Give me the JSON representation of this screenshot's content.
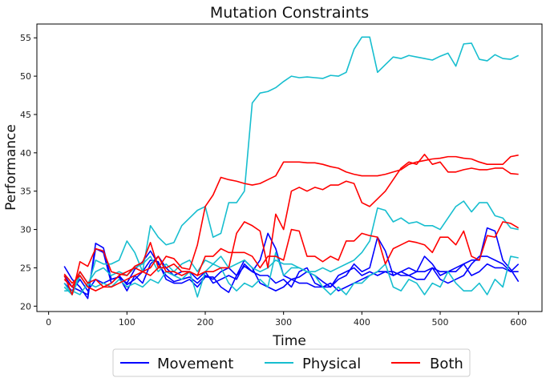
{
  "chart_data": {
    "type": "line",
    "title": "Mutation Constraints",
    "xlabel": "Time",
    "ylabel": "Performance",
    "xlim": [
      -15,
      630
    ],
    "ylim": [
      19.3,
      56.8
    ],
    "xticks": [
      0,
      100,
      200,
      300,
      400,
      500,
      600
    ],
    "yticks": [
      20,
      25,
      30,
      35,
      40,
      45,
      50,
      55
    ],
    "legend": {
      "placement": "bottom-center-outside",
      "columns": 3
    },
    "x": [
      20,
      30,
      40,
      50,
      60,
      70,
      80,
      90,
      100,
      110,
      120,
      130,
      140,
      150,
      160,
      170,
      180,
      190,
      200,
      210,
      220,
      230,
      240,
      250,
      260,
      270,
      280,
      290,
      300,
      310,
      320,
      330,
      340,
      350,
      360,
      370,
      380,
      390,
      400,
      410,
      420,
      430,
      440,
      450,
      460,
      470,
      480,
      490,
      500,
      510,
      520,
      530,
      540,
      550,
      560,
      570,
      580,
      590,
      600
    ],
    "series": [
      {
        "name": "Movement",
        "color": "#0000ff",
        "values": [
          25.2,
          23.5,
          22.5,
          21.0,
          28.2,
          27.6,
          23.5,
          23.8,
          23.0,
          24.8,
          25.8,
          27.2,
          25.5,
          24.0,
          23.2,
          23.5,
          23.8,
          23.0,
          24.0,
          23.5,
          24.5,
          25.0,
          24.0,
          25.2,
          24.5,
          26.0,
          29.5,
          27.5,
          24.0,
          23.5,
          23.8,
          24.5,
          24.0,
          23.2,
          22.5,
          23.5,
          24.0,
          25.5,
          24.5,
          25.0,
          29.0,
          27.2,
          24.0,
          24.5,
          25.0,
          24.5,
          26.5,
          25.5,
          24.0,
          24.5,
          24.5,
          25.5,
          26.0,
          26.0,
          30.2,
          29.8,
          26.0,
          24.8,
          23.2
        ]
      },
      {
        "name": "Movement",
        "color": "#0000ff",
        "values": [
          24.0,
          22.5,
          22.0,
          21.5,
          27.5,
          27.0,
          23.0,
          24.0,
          22.8,
          23.5,
          24.5,
          26.0,
          25.8,
          23.5,
          23.0,
          23.0,
          23.5,
          22.5,
          23.8,
          23.8,
          22.5,
          21.8,
          24.0,
          26.0,
          25.0,
          23.0,
          22.5,
          22.0,
          22.5,
          23.5,
          23.0,
          23.0,
          22.5,
          22.5,
          23.0,
          22.0,
          22.5,
          23.0,
          23.5,
          24.0,
          24.5,
          24.5,
          24.5,
          24.0,
          24.0,
          23.5,
          23.5,
          25.0,
          23.5,
          23.0,
          23.5,
          24.0,
          25.5,
          26.5,
          26.5,
          26.0,
          25.5,
          24.5,
          25.5
        ]
      },
      {
        "name": "Movement",
        "color": "#0000ff",
        "values": [
          23.0,
          22.0,
          23.5,
          22.0,
          23.5,
          23.0,
          23.5,
          23.8,
          22.0,
          24.0,
          23.0,
          25.5,
          26.5,
          25.0,
          24.0,
          24.5,
          24.5,
          23.5,
          24.5,
          23.0,
          23.5,
          24.0,
          23.5,
          25.5,
          24.5,
          24.0,
          24.0,
          23.0,
          23.5,
          22.5,
          24.5,
          25.0,
          23.0,
          22.5,
          22.5,
          24.0,
          24.5,
          25.0,
          24.0,
          24.5,
          24.0,
          24.5,
          24.0,
          24.5,
          24.0,
          24.5,
          24.5,
          25.0,
          24.5,
          24.5,
          25.0,
          25.5,
          24.0,
          24.5,
          25.5,
          25.0,
          25.0,
          24.5,
          24.5
        ]
      },
      {
        "name": "Physical",
        "color": "#17becf",
        "values": [
          22.5,
          21.5,
          24.0,
          22.5,
          26.0,
          25.5,
          25.5,
          26.0,
          28.5,
          27.0,
          24.5,
          30.5,
          29.0,
          28.0,
          28.3,
          30.5,
          31.5,
          32.5,
          33.0,
          29.0,
          29.5,
          33.5,
          33.5,
          35.0,
          46.5,
          47.8,
          48.0,
          48.5,
          49.3,
          50.0,
          49.8,
          49.9,
          49.8,
          49.7,
          50.1,
          50.0,
          50.5,
          53.5,
          55.1,
          55.1,
          50.5,
          51.5,
          52.5,
          52.3,
          52.7,
          52.5,
          52.3,
          52.1,
          52.6,
          53.0,
          51.3,
          54.2,
          54.3,
          52.2,
          52.0,
          52.8,
          52.3,
          52.2,
          52.7
        ]
      },
      {
        "name": "Physical",
        "color": "#17becf",
        "values": [
          23.0,
          21.5,
          24.5,
          23.0,
          24.5,
          25.0,
          24.0,
          24.5,
          24.0,
          25.0,
          25.5,
          26.5,
          24.5,
          25.5,
          24.5,
          25.5,
          26.0,
          24.5,
          26.0,
          25.5,
          26.5,
          25.0,
          25.5,
          26.0,
          25.0,
          24.5,
          25.0,
          26.0,
          25.5,
          25.5,
          25.0,
          24.5,
          24.5,
          25.0,
          24.5,
          25.0,
          25.5,
          26.0,
          27.0,
          28.5,
          32.8,
          32.5,
          31.0,
          31.5,
          30.8,
          31.0,
          30.5,
          30.5,
          30.0,
          31.5,
          33.0,
          33.7,
          32.3,
          33.5,
          33.5,
          31.8,
          31.5,
          30.2,
          30.0
        ]
      },
      {
        "name": "Physical",
        "color": "#17becf",
        "values": [
          22.0,
          22.0,
          21.5,
          23.0,
          22.5,
          23.0,
          22.5,
          23.5,
          22.5,
          23.0,
          22.5,
          23.5,
          23.0,
          24.5,
          24.0,
          23.5,
          24.5,
          21.2,
          24.5,
          25.5,
          25.0,
          23.0,
          22.0,
          23.0,
          22.5,
          23.5,
          22.5,
          27.0,
          24.0,
          25.0,
          25.0,
          24.5,
          24.0,
          22.5,
          21.5,
          22.5,
          21.5,
          23.0,
          23.0,
          24.0,
          24.5,
          25.5,
          22.5,
          22.0,
          23.5,
          23.0,
          21.5,
          23.0,
          22.5,
          24.5,
          23.0,
          22.0,
          22.0,
          23.0,
          21.5,
          23.5,
          22.5,
          26.5,
          26.3
        ]
      },
      {
        "name": "Both",
        "color": "#ff0000",
        "values": [
          24.0,
          21.5,
          25.8,
          25.2,
          27.5,
          27.2,
          24.5,
          24.2,
          24.0,
          25.2,
          25.7,
          28.3,
          25.0,
          26.5,
          26.2,
          25.0,
          24.8,
          28.0,
          33.0,
          34.5,
          36.8,
          36.5,
          36.3,
          36.0,
          35.8,
          36.0,
          36.5,
          37.0,
          38.8,
          38.8,
          38.8,
          38.7,
          38.7,
          38.5,
          38.2,
          38.0,
          37.5,
          37.2,
          37.0,
          37.0,
          37.0,
          37.2,
          37.5,
          37.8,
          38.5,
          38.8,
          39.0,
          39.2,
          39.3,
          39.5,
          39.5,
          39.3,
          39.2,
          38.8,
          38.5,
          38.5,
          38.5,
          39.5,
          39.7
        ]
      },
      {
        "name": "Both",
        "color": "#ff0000",
        "values": [
          23.5,
          22.5,
          24.5,
          23.0,
          23.5,
          22.5,
          23.0,
          24.0,
          24.5,
          25.0,
          24.5,
          25.0,
          26.5,
          24.5,
          24.5,
          24.0,
          24.5,
          24.0,
          24.5,
          24.5,
          25.0,
          25.0,
          29.5,
          31.0,
          30.5,
          29.8,
          25.0,
          32.0,
          30.0,
          35.0,
          35.5,
          35.0,
          35.5,
          35.2,
          35.8,
          35.8,
          36.3,
          36.0,
          33.5,
          33.0,
          34.0,
          35.0,
          36.5,
          38.0,
          38.8,
          38.5,
          39.8,
          38.5,
          38.8,
          37.5,
          37.5,
          37.8,
          38.0,
          37.8,
          37.8,
          38.0,
          38.0,
          37.3,
          37.2
        ]
      },
      {
        "name": "Both",
        "color": "#ff0000",
        "values": [
          24.2,
          23.0,
          24.0,
          22.5,
          22.0,
          22.5,
          22.5,
          23.0,
          23.5,
          24.0,
          24.5,
          24.0,
          25.0,
          25.0,
          25.5,
          24.5,
          24.5,
          24.0,
          26.5,
          26.5,
          27.5,
          27.0,
          27.0,
          27.0,
          26.5,
          25.0,
          26.5,
          26.5,
          26.0,
          30.0,
          29.8,
          26.5,
          26.5,
          25.8,
          26.5,
          26.0,
          28.5,
          28.5,
          29.5,
          29.2,
          29.0,
          25.5,
          27.5,
          28.0,
          28.5,
          28.3,
          28.0,
          27.0,
          29.0,
          29.0,
          28.0,
          29.8,
          26.5,
          26.0,
          29.2,
          29.0,
          31.0,
          30.8,
          30.2
        ]
      }
    ]
  },
  "legend": {
    "items": [
      {
        "label": "Movement",
        "color": "#0000ff"
      },
      {
        "label": "Physical",
        "color": "#17becf"
      },
      {
        "label": "Both",
        "color": "#ff0000"
      }
    ]
  }
}
